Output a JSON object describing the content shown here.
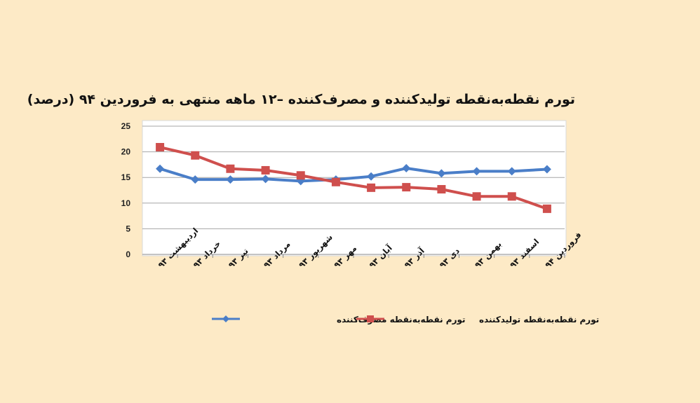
{
  "chart_data": {
    "type": "line",
    "title": "تورم نقطه‌به‌نقطه تولیدکننده و مصرف‌کننده –۱۲ ماهه منتهی به فروردین ۹۴ (درصد)",
    "categories": [
      "اردیبهشت ۹۳",
      "خرداد ۹۳",
      "تیر ۹۳",
      "مرداد ۹۳",
      "شهریور ۹۳",
      "مهر ۹۳",
      "آبان ۹۳",
      "آذر ۹۳",
      "دی ۹۳",
      "بهمن ۹۳",
      "اسفند ۹۳",
      "فروردین ۹۴"
    ],
    "series": [
      {
        "name": "تورم نقطه‌به‌نقطه مصرف‌کننده",
        "color": "#4A7EC8",
        "marker": "diamond",
        "values": [
          16.7,
          14.6,
          14.6,
          14.7,
          14.3,
          14.6,
          15.2,
          16.8,
          15.8,
          16.2,
          16.2,
          16.6
        ]
      },
      {
        "name": "تورم نقطه‌به‌نقطه تولیدکننده",
        "color": "#CF4F4D",
        "marker": "square",
        "values": [
          20.9,
          19.3,
          16.7,
          16.4,
          15.4,
          14.1,
          13.0,
          13.1,
          12.7,
          11.3,
          11.3,
          8.9
        ]
      }
    ],
    "yticks": [
      "0",
      "5",
      "10",
      "15",
      "20",
      "25"
    ],
    "ylim": [
      0,
      25
    ],
    "grid": true,
    "legend": "bottom",
    "xlabel": "",
    "ylabel": ""
  }
}
